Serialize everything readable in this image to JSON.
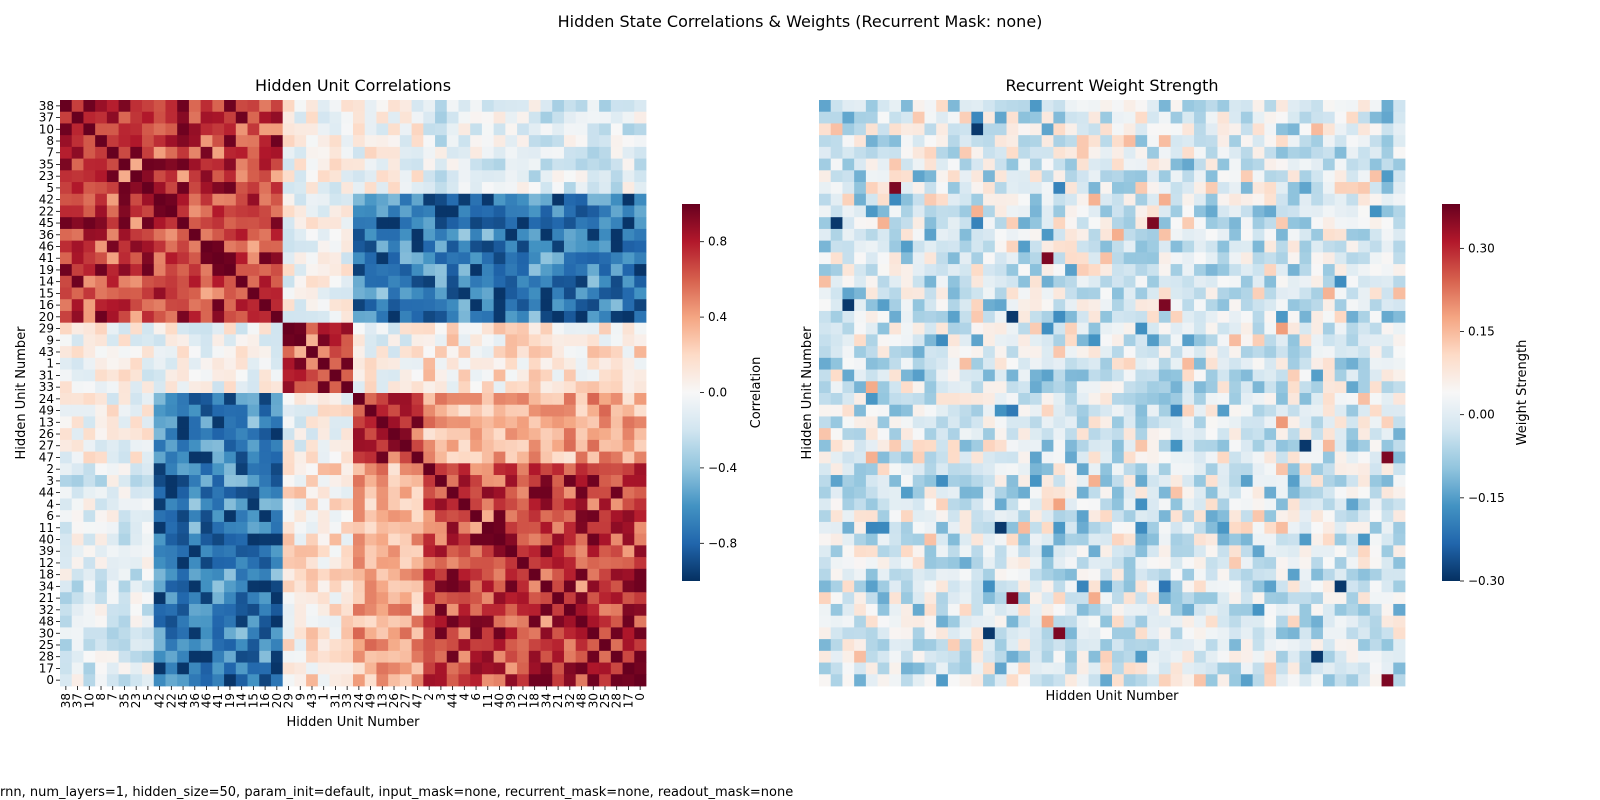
{
  "suptitle": "Hidden State Correlations & Weights (Recurrent Mask: none)",
  "footer": "rnn, num_layers=1, hidden_size=50, param_init=default, input_mask=none, recurrent_mask=none, readout_mask=none",
  "chart_data": [
    {
      "type": "heatmap",
      "title": "Hidden Unit Correlations",
      "xlabel": "Hidden Unit Number",
      "ylabel": "Hidden Unit Number",
      "colormap": "RdBu_r",
      "colorbar_label": "Correlation",
      "vmin": -1.0,
      "vmax": 1.0,
      "colorbar_ticks": [
        "0.8",
        "0.4",
        "0.0",
        "−0.4",
        "−0.8"
      ],
      "colorbar_tick_values": [
        0.8,
        0.4,
        0.0,
        -0.4,
        -0.8
      ],
      "unit_order": [
        38,
        37,
        10,
        8,
        7,
        35,
        23,
        5,
        42,
        22,
        45,
        36,
        46,
        41,
        19,
        14,
        15,
        16,
        20,
        29,
        9,
        43,
        1,
        31,
        33,
        24,
        49,
        13,
        26,
        27,
        47,
        2,
        3,
        44,
        4,
        6,
        11,
        40,
        39,
        12,
        18,
        34,
        21,
        32,
        48,
        30,
        25,
        28,
        17,
        0
      ],
      "x_tick_labels": [
        "38",
        "10",
        "7",
        "23",
        "42",
        "45",
        "46",
        "19",
        "15",
        "20",
        "9",
        "1",
        "33",
        "49",
        "26",
        "47",
        "3",
        "4",
        "11",
        "39",
        "18",
        "21",
        "48",
        "25",
        "17"
      ],
      "x_tick_indices": [
        0,
        2,
        4,
        6,
        8,
        10,
        12,
        14,
        16,
        18,
        20,
        22,
        24,
        26,
        28,
        30,
        32,
        34,
        36,
        38,
        40,
        42,
        44,
        46,
        48
      ],
      "x_tick_labels_odd": [
        "37",
        "8",
        "35",
        "5",
        "22",
        "36",
        "41",
        "14",
        "16",
        "29",
        "43",
        "31",
        "24",
        "13",
        "27",
        "2",
        "44",
        "6",
        "40",
        "12",
        "34",
        "32",
        "30",
        "28",
        "0"
      ],
      "cluster_sizes": [
        8,
        11,
        6,
        6,
        19
      ],
      "cluster_sign": [
        [
          1,
          1,
          0,
          0,
          -0.2
        ],
        [
          1,
          1,
          0,
          -1,
          -1
        ],
        [
          0,
          0,
          1,
          0,
          0.2
        ],
        [
          0,
          -1,
          0,
          1,
          0.6
        ],
        [
          -0.2,
          -1,
          0.2,
          0.6,
          1
        ]
      ],
      "cluster_strength": [
        0.35,
        0.85,
        0.6,
        0.75,
        0.8
      ]
    },
    {
      "type": "heatmap",
      "title": "Recurrent Weight Strength",
      "xlabel": "Hidden Unit Number",
      "ylabel": "Hidden Unit Number",
      "colormap": "RdBu_r",
      "colorbar_label": "Weight Strength",
      "vmin": -0.3,
      "vmax": 0.38,
      "colorbar_ticks": [
        "0.30",
        "0.15",
        "0.00",
        "−0.15",
        "−0.30"
      ],
      "colorbar_tick_values": [
        0.3,
        0.15,
        0.0,
        -0.15,
        -0.3
      ],
      "size": 50,
      "value_range": [
        -0.3,
        0.38
      ]
    }
  ]
}
